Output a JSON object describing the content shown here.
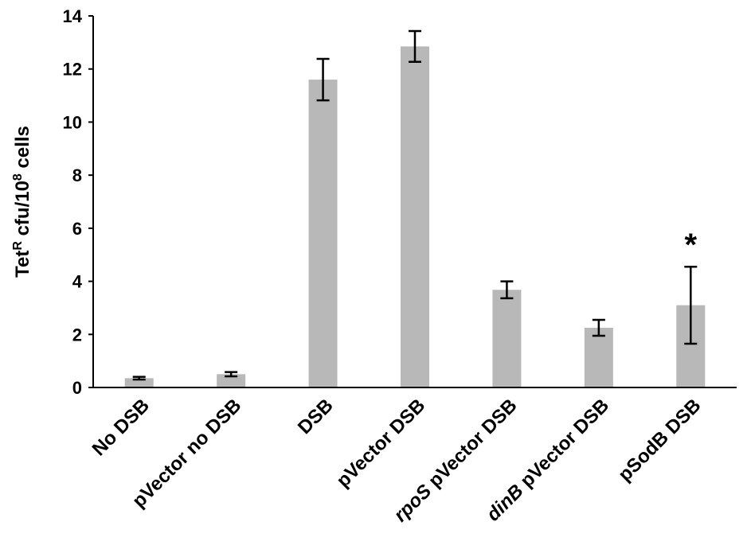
{
  "chart_data": {
    "type": "bar",
    "title": "",
    "xlabel": "",
    "ylabel": {
      "main": "Tet",
      "sup1": "R",
      "mid": " cfu/10",
      "sup2": "8",
      "end": " cells"
    },
    "ylim": [
      0,
      14
    ],
    "yticks": [
      0,
      2,
      4,
      6,
      8,
      10,
      12,
      14
    ],
    "categories": [
      {
        "parts": [
          {
            "text": "No DSB",
            "italic": false
          }
        ]
      },
      {
        "parts": [
          {
            "text": "pVector no DSB",
            "italic": false
          }
        ]
      },
      {
        "parts": [
          {
            "text": "DSB",
            "italic": false
          }
        ]
      },
      {
        "parts": [
          {
            "text": "pVector DSB",
            "italic": false
          }
        ]
      },
      {
        "parts": [
          {
            "text": "rpoS",
            "italic": true
          },
          {
            "text": " pVector DSB",
            "italic": false
          }
        ]
      },
      {
        "parts": [
          {
            "text": "dinB",
            "italic": true
          },
          {
            "text": " pVector DSB",
            "italic": false
          }
        ]
      },
      {
        "parts": [
          {
            "text": "pSodB DSB",
            "italic": false
          }
        ]
      }
    ],
    "values": [
      0.35,
      0.5,
      11.6,
      12.85,
      3.68,
      2.25,
      3.1
    ],
    "errors": [
      0.05,
      0.08,
      0.78,
      0.58,
      0.32,
      0.3,
      1.45
    ],
    "annotations": [
      {
        "category_index": 6,
        "text": "*"
      }
    ],
    "bar_color": "#b8b8b8",
    "grid": false,
    "legend": "none"
  }
}
